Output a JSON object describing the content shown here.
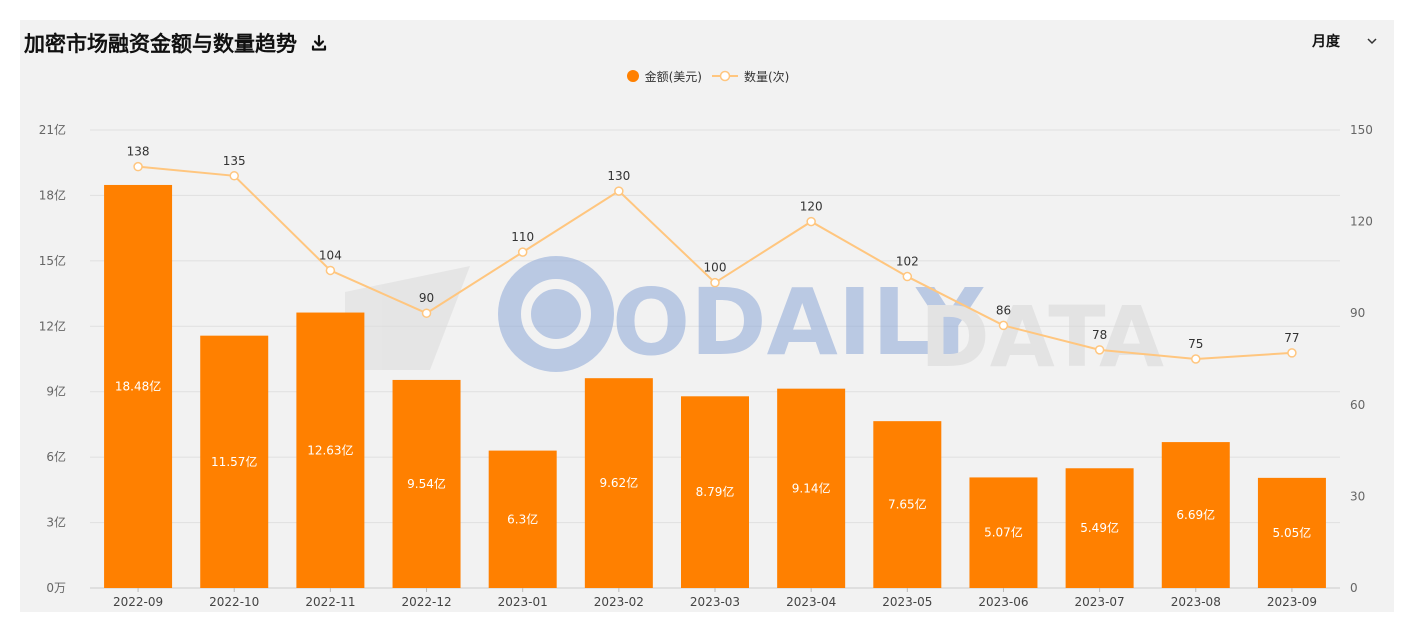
{
  "header": {
    "title": "加密市场融资金额与数量趋势",
    "period_selector": "月度"
  },
  "colors": {
    "bar": "#ff8000",
    "line": "#ffc67f",
    "grid": "#e0e0e0"
  },
  "icons": {
    "download": "download-icon",
    "dropdown": "chevron-down-icon"
  },
  "watermark": {
    "text": "ODAILY",
    "text2": "DATA"
  },
  "chart_data": {
    "type": "bar",
    "legend_position": "top-center",
    "categories": [
      "2022-09",
      "2022-10",
      "2022-11",
      "2022-12",
      "2023-01",
      "2023-02",
      "2023-03",
      "2023-04",
      "2023-05",
      "2023-06",
      "2023-07",
      "2023-08",
      "2023-09"
    ],
    "series": [
      {
        "name": "金额(美元)",
        "type": "bar",
        "axis": "left",
        "values": [
          18.48,
          11.57,
          12.63,
          9.54,
          6.3,
          9.62,
          8.79,
          9.14,
          7.65,
          5.07,
          5.49,
          6.69,
          5.05
        ],
        "labels": [
          "18.48亿",
          "11.57亿",
          "12.63亿",
          "9.54亿",
          "6.3亿",
          "9.62亿",
          "8.79亿",
          "9.14亿",
          "7.65亿",
          "5.07亿",
          "5.49亿",
          "6.69亿",
          "5.05亿"
        ]
      },
      {
        "name": "数量(次)",
        "type": "line",
        "axis": "right",
        "values": [
          138,
          135,
          104,
          90,
          110,
          130,
          100,
          120,
          102,
          86,
          78,
          75,
          77
        ],
        "labels": [
          "138",
          "135",
          "104",
          "90",
          "110",
          "130",
          "100",
          "120",
          "102",
          "86",
          "78",
          "75",
          "77"
        ]
      }
    ],
    "y_left": {
      "range": [
        0,
        21
      ],
      "ticks": [
        0,
        3,
        6,
        9,
        12,
        15,
        18,
        21
      ],
      "tick_labels": [
        "0万",
        "3亿",
        "6亿",
        "9亿",
        "12亿",
        "15亿",
        "18亿",
        "21亿"
      ]
    },
    "y_right": {
      "range": [
        0,
        150
      ],
      "ticks": [
        0,
        30,
        60,
        90,
        120,
        150
      ],
      "tick_labels": [
        "0",
        "30",
        "60",
        "90",
        "120",
        "150"
      ]
    },
    "grid": true
  }
}
